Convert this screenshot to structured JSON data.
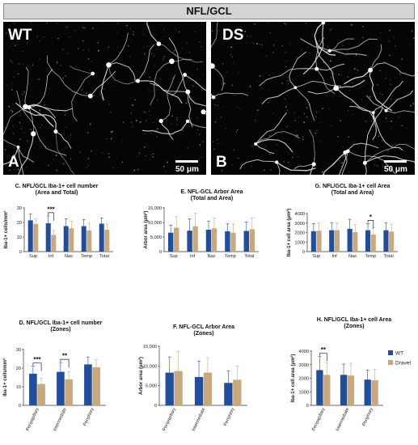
{
  "banner": {
    "title": "NFL/GCL"
  },
  "panels": {
    "a": {
      "group": "WT",
      "letter": "A",
      "scale": "50 μm"
    },
    "b": {
      "group": "DS",
      "letter": "B",
      "scale": "50 μm"
    }
  },
  "legend": [
    {
      "name": "WT",
      "color": "#1f4e9c"
    },
    {
      "name": "Dravet",
      "color": "#c8a87c"
    }
  ],
  "chart_data": [
    {
      "id": "C",
      "type": "bar",
      "title": "C.  NFL/GCL Iba-1+ cell number",
      "subtitle": "(Area and Total)",
      "ylabel": "Iba-1+ cells/mm²",
      "ylim": [
        0,
        30
      ],
      "yticks": [
        0,
        10,
        20,
        30
      ],
      "categories": [
        "Sup",
        "Inf",
        "Nas",
        "Temp",
        "Total"
      ],
      "series": [
        {
          "name": "WT",
          "values": [
            21.5,
            19.5,
            17.5,
            17.5,
            19.2
          ],
          "errors": [
            4.5,
            5,
            5,
            4.5,
            4
          ]
        },
        {
          "name": "Dravet",
          "values": [
            19,
            11.5,
            16,
            14.5,
            15
          ],
          "errors": [
            3.5,
            3,
            5,
            5,
            4
          ]
        }
      ],
      "significance": [
        {
          "category": "Inf",
          "label": "***"
        }
      ]
    },
    {
      "id": "E",
      "type": "bar",
      "title": "E.  NFL-GCL Arbor Area",
      "subtitle": "(Total and Area)",
      "ylabel": "Arbor area (μm²)",
      "ylim": [
        0,
        15000
      ],
      "yticks": [
        0,
        5000,
        10000,
        15000
      ],
      "ytick_labels": [
        "0",
        "5,000",
        "10,000",
        "15,000"
      ],
      "categories": [
        "Sup",
        "Inf",
        "Nas",
        "Temp",
        "Total"
      ],
      "series": [
        {
          "name": "WT",
          "values": [
            6500,
            7200,
            7500,
            7000,
            7100
          ],
          "errors": [
            2500,
            4000,
            3000,
            2500,
            3000
          ]
        },
        {
          "name": "Dravet",
          "values": [
            8200,
            8700,
            8000,
            6500,
            7700
          ],
          "errors": [
            3800,
            4500,
            3500,
            3000,
            3800
          ]
        }
      ],
      "significance": []
    },
    {
      "id": "G",
      "type": "bar",
      "title": "G.  NFL/GCL Iba-1+ cell Area",
      "subtitle": "(Total and Area)",
      "ylabel": "Iba-1+ cell area (μm²)",
      "ylim": [
        0,
        4000
      ],
      "yticks": [
        0,
        1000,
        2000,
        3000,
        4000
      ],
      "categories": [
        "Sup",
        "Inf",
        "Nas",
        "Temp",
        "Total"
      ],
      "series": [
        {
          "name": "WT",
          "values": [
            2150,
            2250,
            2400,
            2250,
            2250
          ],
          "errors": [
            800,
            800,
            1000,
            700,
            800
          ]
        },
        {
          "name": "Dravet",
          "values": [
            2200,
            2250,
            2050,
            1800,
            2100
          ],
          "errors": [
            800,
            800,
            800,
            700,
            800
          ]
        }
      ],
      "significance": [
        {
          "category": "Temp",
          "label": "*"
        }
      ]
    },
    {
      "id": "D",
      "type": "bar",
      "title": "D.  NFL/GCL Iba-1+ cell number",
      "subtitle": "(Zones)",
      "ylabel": "Iba-1+ cells/mm²",
      "ylim": [
        0,
        30
      ],
      "yticks": [
        0,
        10,
        20,
        30
      ],
      "categories": [
        "Peripapillary",
        "Intermediate",
        "Periphery"
      ],
      "series": [
        {
          "name": "WT",
          "values": [
            17,
            18,
            22
          ],
          "errors": [
            4,
            5,
            4
          ]
        },
        {
          "name": "Dravet",
          "values": [
            11.5,
            14,
            20.5
          ],
          "errors": [
            3,
            4,
            4
          ]
        }
      ],
      "significance": [
        {
          "category": "Peripapillary",
          "label": "***"
        },
        {
          "category": "Intermediate",
          "label": "**"
        }
      ]
    },
    {
      "id": "F",
      "type": "bar",
      "title": "F.  NFL-GCL Arbor Area",
      "subtitle": "(Zones)",
      "ylabel": "Arbor area (μm²)",
      "ylim": [
        0,
        15000
      ],
      "yticks": [
        0,
        5000,
        10000,
        15000
      ],
      "ytick_labels": [
        "0",
        "5,000",
        "10,000",
        "15,000"
      ],
      "categories": [
        "Peripapillary",
        "Intermediate",
        "Periphery"
      ],
      "series": [
        {
          "name": "WT",
          "values": [
            8300,
            7200,
            5700
          ],
          "errors": [
            4000,
            4000,
            3000
          ]
        },
        {
          "name": "Dravet",
          "values": [
            8700,
            8300,
            6500
          ],
          "errors": [
            5000,
            3800,
            3500
          ]
        }
      ],
      "significance": []
    },
    {
      "id": "H",
      "type": "bar",
      "title": "H.  NFL/GCL Iba-1+ cell Area",
      "subtitle": "(Zones)",
      "ylabel": "Iba-1+ cell area (μm²)",
      "ylim": [
        0,
        4000
      ],
      "yticks": [
        0,
        1000,
        2000,
        3000,
        4000
      ],
      "categories": [
        "Peripapillary",
        "Intermediate",
        "Periphery"
      ],
      "series": [
        {
          "name": "WT",
          "values": [
            2600,
            2250,
            1900
          ],
          "errors": [
            1000,
            800,
            700
          ]
        },
        {
          "name": "Dravet",
          "values": [
            2250,
            2200,
            1850
          ],
          "errors": [
            900,
            900,
            800
          ]
        }
      ],
      "significance": [
        {
          "category": "Peripapillary",
          "label": "**"
        }
      ]
    }
  ]
}
